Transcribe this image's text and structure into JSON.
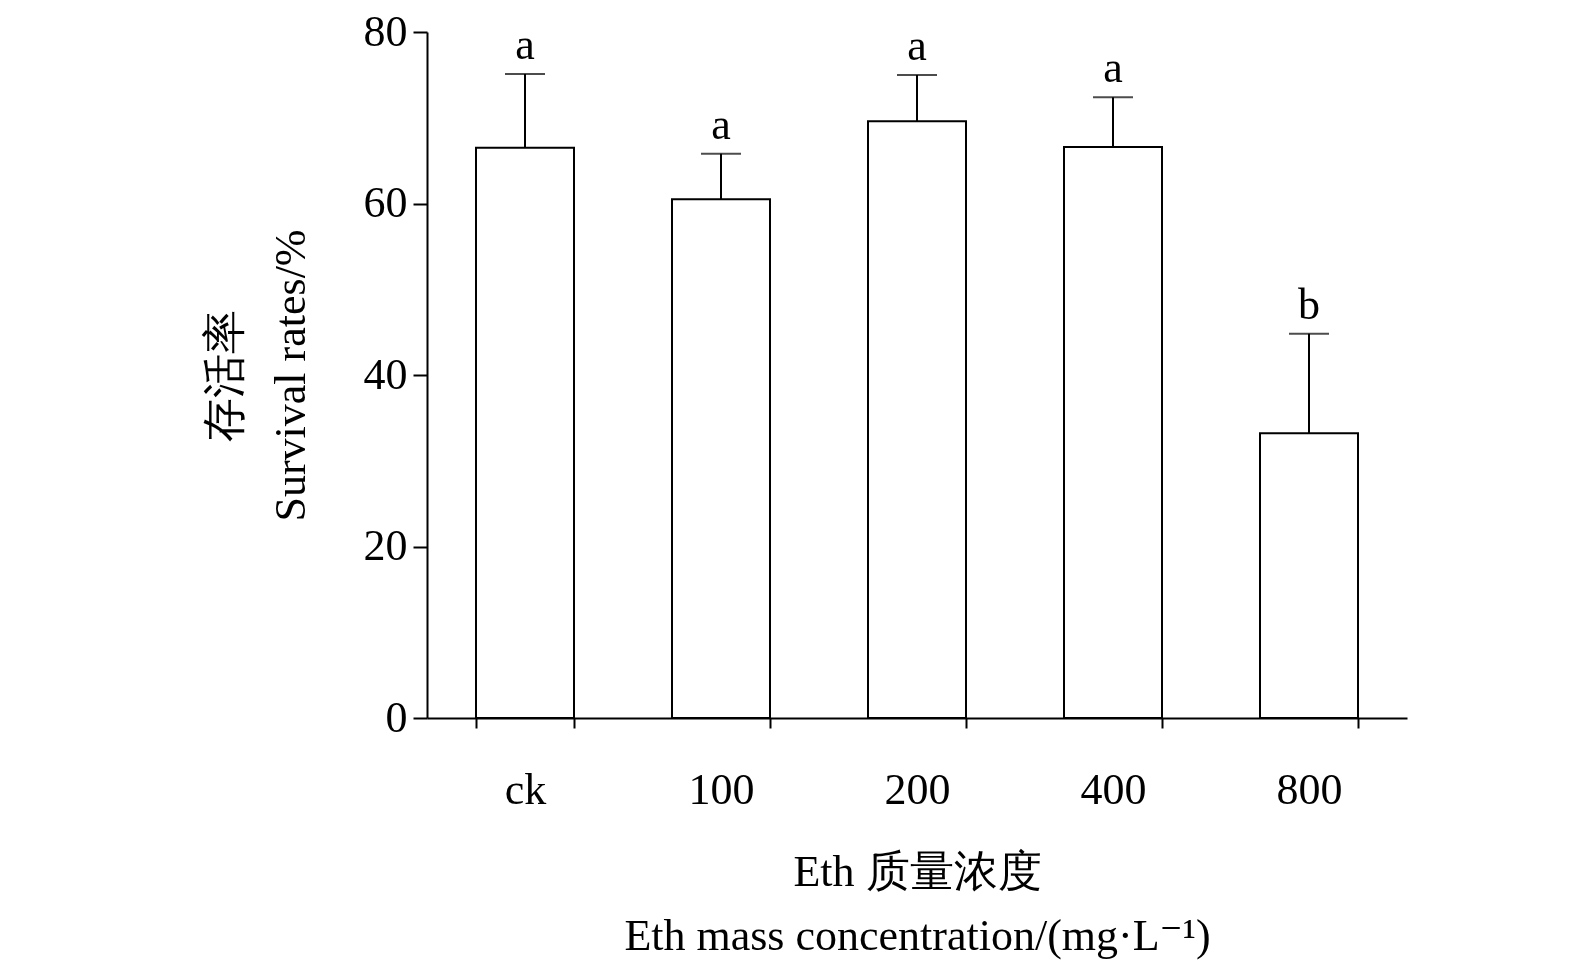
{
  "chart_data": {
    "type": "bar",
    "xlabel": "Eth 质量浓度\nEth mass concentration/(mg·L⁻¹)",
    "ylabel": "存活率\nSurvival rates/%",
    "categories": [
      "ck",
      "100",
      "200",
      "400",
      "800"
    ],
    "values": [
      66.5,
      60.5,
      69.6,
      66.6,
      33.2
    ],
    "errors": [
      [
        66.5,
        75.1
      ],
      [
        60.5,
        65.8
      ],
      [
        69.6,
        75.0
      ],
      [
        66.6,
        72.4
      ],
      [
        33.2,
        44.8
      ]
    ],
    "color": "#ffffff",
    "ylim": [
      0,
      80
    ],
    "yticks": [
      0,
      20,
      40,
      60,
      80
    ],
    "grid": false,
    "annotations": [
      {
        "text": "a",
        "x": "ck",
        "y": 75.1
      },
      {
        "text": "a",
        "x": "100",
        "y": 65.8
      },
      {
        "text": "a",
        "x": "200",
        "y": 75.0
      },
      {
        "text": "a",
        "x": "400",
        "y": 72.4
      },
      {
        "text": "b",
        "x": "800",
        "y": 44.8
      }
    ]
  }
}
